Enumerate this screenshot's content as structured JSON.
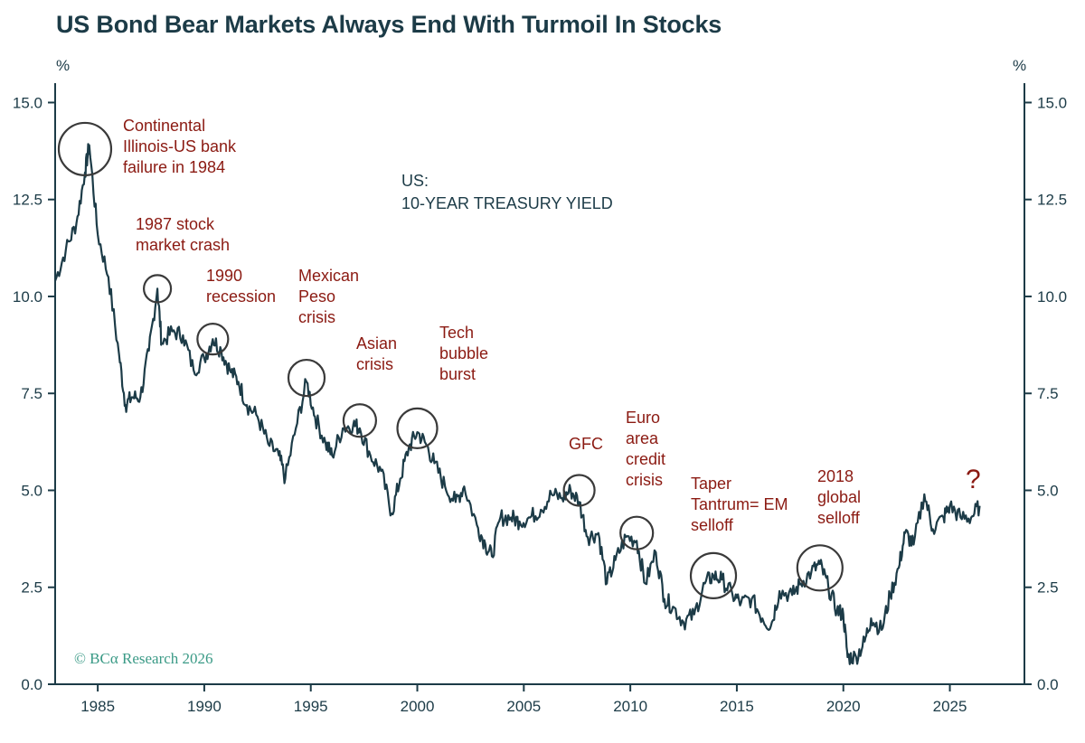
{
  "title": "US Bond Bear Markets Always End With Turmoil In Stocks",
  "credit": "© BCα Research 2026",
  "colors": {
    "line": "#1c3b47",
    "annotation": "#8b1a12",
    "circle": "#3a3a3a",
    "credit": "#3a9a86"
  },
  "chart_data": {
    "type": "line",
    "series_label": [
      "US:",
      "10-YEAR TREASURY YIELD"
    ],
    "y_unit_left": "%",
    "y_unit_right": "%",
    "xlim": [
      1983.0,
      2028.5
    ],
    "ylim": [
      0,
      15.5
    ],
    "x_ticks": [
      1985,
      1990,
      1995,
      2000,
      2005,
      2010,
      2015,
      2020,
      2025
    ],
    "y_ticks": [
      "0.0",
      "2.5",
      "5.0",
      "7.5",
      "10.0",
      "12.5",
      "15.0"
    ],
    "x": [
      1983.0,
      1983.5,
      1984.0,
      1984.4,
      1984.6,
      1985.0,
      1985.5,
      1986.0,
      1986.3,
      1986.6,
      1987.0,
      1987.4,
      1987.8,
      1988.0,
      1988.5,
      1989.0,
      1989.5,
      1990.0,
      1990.4,
      1990.8,
      1991.2,
      1991.6,
      1992.0,
      1992.5,
      1993.0,
      1993.5,
      1993.8,
      1994.3,
      1994.8,
      1995.2,
      1995.7,
      1996.0,
      1996.5,
      1997.0,
      1997.3,
      1997.8,
      1998.3,
      1998.8,
      1999.2,
      1999.6,
      2000.0,
      2000.4,
      2000.8,
      2001.3,
      2001.8,
      2002.2,
      2002.8,
      2003.2,
      2003.5,
      2003.9,
      2004.4,
      2004.8,
      2005.3,
      2005.8,
      2006.3,
      2006.8,
      2007.2,
      2007.6,
      2008.0,
      2008.5,
      2008.9,
      2009.3,
      2009.8,
      2010.3,
      2010.7,
      2011.2,
      2011.6,
      2012.0,
      2012.5,
      2013.0,
      2013.5,
      2013.9,
      2014.3,
      2014.8,
      2015.2,
      2015.7,
      2016.2,
      2016.6,
      2017.0,
      2017.6,
      2018.0,
      2018.5,
      2018.9,
      2019.3,
      2019.7,
      2020.0,
      2020.2,
      2020.6,
      2021.0,
      2021.3,
      2021.8,
      2022.2,
      2022.6,
      2022.9,
      2023.3,
      2023.8,
      2024.2,
      2024.7,
      2025.0,
      2025.5,
      2026.0,
      2026.4
    ],
    "values": [
      10.4,
      11.2,
      11.9,
      13.2,
      13.9,
      11.6,
      10.5,
      8.5,
      7.2,
      7.4,
      7.4,
      8.6,
      10.2,
      8.8,
      9.1,
      9.0,
      8.1,
      8.4,
      8.9,
      8.6,
      8.1,
      7.8,
      7.2,
      6.9,
      6.2,
      5.9,
      5.3,
      6.6,
      7.8,
      6.9,
      6.2,
      5.9,
      6.6,
      6.7,
      6.6,
      5.9,
      5.5,
      4.4,
      5.3,
      6.1,
      6.5,
      6.2,
      5.7,
      5.1,
      4.7,
      5.1,
      4.1,
      3.6,
      3.3,
      4.3,
      4.3,
      4.2,
      4.3,
      4.5,
      4.9,
      4.8,
      5.0,
      4.7,
      3.8,
      3.9,
      2.6,
      3.2,
      3.8,
      3.7,
      2.6,
      3.4,
      2.2,
      2.0,
      1.6,
      1.8,
      2.6,
      2.8,
      2.7,
      2.3,
      2.1,
      2.2,
      1.7,
      1.5,
      2.4,
      2.3,
      2.6,
      2.9,
      3.1,
      2.5,
      1.9,
      1.8,
      0.7,
      0.7,
      1.1,
      1.7,
      1.4,
      2.3,
      3.0,
      3.9,
      3.6,
      4.9,
      4.0,
      4.3,
      4.6,
      4.3,
      4.3,
      4.6
    ],
    "annotations": [
      {
        "lines": [
          "Continental",
          "Illinois-US bank",
          "failure in 1984"
        ],
        "x": 1984.4,
        "y": 13.8
      },
      {
        "lines": [
          "1987 stock",
          "market crash"
        ],
        "x": 1987.8,
        "y": 10.2
      },
      {
        "lines": [
          "1990",
          "recession"
        ],
        "x": 1990.4,
        "y": 8.9
      },
      {
        "lines": [
          "Mexican",
          "Peso",
          "crisis"
        ],
        "x": 1994.8,
        "y": 7.9
      },
      {
        "lines": [
          "Asian",
          "crisis"
        ],
        "x": 1997.3,
        "y": 6.8
      },
      {
        "lines": [
          "Tech",
          "bubble",
          "burst"
        ],
        "x": 2000.0,
        "y": 6.6
      },
      {
        "lines": [
          "GFC"
        ],
        "x": 2007.6,
        "y": 5.0
      },
      {
        "lines": [
          "Euro",
          "area",
          "credit",
          "crisis"
        ],
        "x": 2010.3,
        "y": 3.9
      },
      {
        "lines": [
          "Taper",
          "Tantrum= EM",
          "selloff"
        ],
        "x": 2013.9,
        "y": 2.8
      },
      {
        "lines": [
          "2018",
          "global",
          "selloff"
        ],
        "x": 2018.9,
        "y": 3.0
      }
    ],
    "end_marker": "?"
  }
}
